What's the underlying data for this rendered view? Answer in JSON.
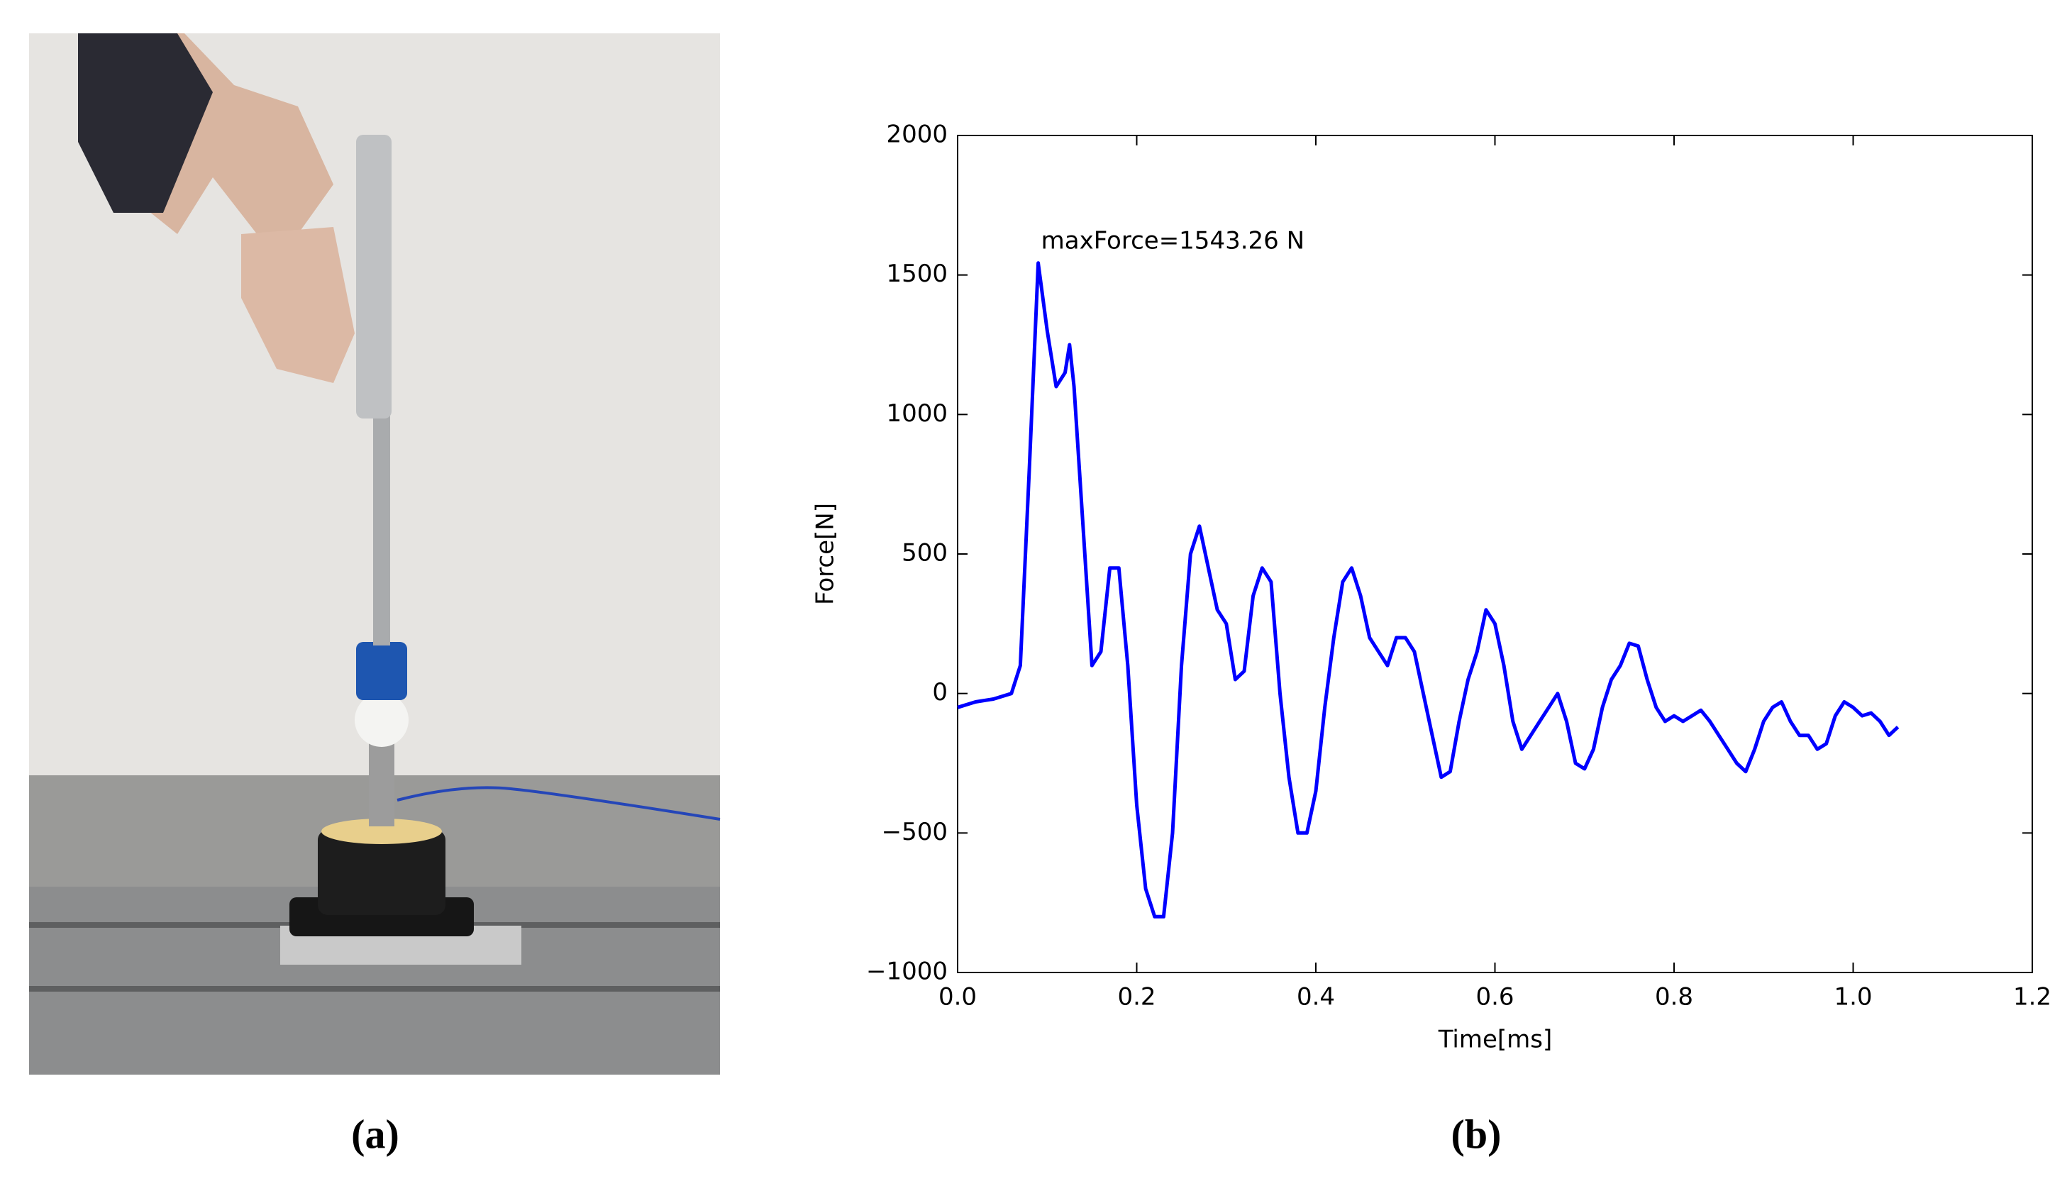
{
  "chart_data": {
    "type": "line",
    "xlabel": "Time[ms]",
    "ylabel": "Force[N]",
    "annotation": "maxForce=1543.26 N",
    "color": "#0000ff",
    "x": [
      0.0,
      0.02,
      0.04,
      0.06,
      0.07,
      0.08,
      0.09,
      0.1,
      0.11,
      0.12,
      0.125,
      0.13,
      0.14,
      0.15,
      0.16,
      0.17,
      0.18,
      0.19,
      0.2,
      0.21,
      0.22,
      0.23,
      0.24,
      0.25,
      0.26,
      0.27,
      0.28,
      0.29,
      0.3,
      0.31,
      0.32,
      0.33,
      0.34,
      0.35,
      0.36,
      0.37,
      0.38,
      0.39,
      0.4,
      0.41,
      0.42,
      0.43,
      0.44,
      0.45,
      0.46,
      0.47,
      0.48,
      0.49,
      0.5,
      0.51,
      0.52,
      0.53,
      0.54,
      0.55,
      0.56,
      0.57,
      0.58,
      0.59,
      0.6,
      0.61,
      0.62,
      0.63,
      0.64,
      0.65,
      0.66,
      0.67,
      0.68,
      0.69,
      0.7,
      0.71,
      0.72,
      0.73,
      0.74,
      0.75,
      0.76,
      0.77,
      0.78,
      0.79,
      0.8,
      0.81,
      0.82,
      0.83,
      0.84,
      0.85,
      0.86,
      0.87,
      0.88,
      0.89,
      0.9,
      0.91,
      0.92,
      0.93,
      0.94,
      0.95,
      0.96,
      0.97,
      0.98,
      0.99,
      1.0,
      1.01,
      1.02,
      1.03,
      1.04,
      1.05
    ],
    "values": [
      -50,
      -30,
      -20,
      0,
      100,
      800,
      1543,
      1300,
      1100,
      1150,
      1250,
      1100,
      600,
      100,
      150,
      450,
      450,
      100,
      -400,
      -700,
      -800,
      -800,
      -500,
      100,
      500,
      600,
      450,
      300,
      250,
      50,
      80,
      350,
      450,
      400,
      0,
      -300,
      -500,
      -500,
      -350,
      -50,
      200,
      400,
      450,
      350,
      200,
      150,
      100,
      200,
      200,
      150,
      0,
      -150,
      -300,
      -280,
      -100,
      50,
      150,
      300,
      250,
      100,
      -100,
      -200,
      -150,
      -100,
      -50,
      0,
      -100,
      -250,
      -270,
      -200,
      -50,
      50,
      100,
      180,
      170,
      50,
      -50,
      -100,
      -80,
      -100,
      -80,
      -60,
      -100,
      -150,
      -200,
      -250,
      -280,
      -200,
      -100,
      -50,
      -30,
      -100,
      -150,
      -150,
      -200,
      -180,
      -80,
      -30,
      -50,
      -80,
      -70,
      -100,
      -150,
      -120
    ],
    "xlim": [
      0,
      1.2
    ],
    "xticks": [
      {
        "value": 0,
        "label": "0.0"
      },
      0.2,
      0.4,
      0.6,
      0.8,
      {
        "value": 1,
        "label": "1.0"
      },
      1.2
    ],
    "ylim": [
      -1000,
      2000
    ],
    "yticks": [
      {
        "value": -1000,
        "label": "−1000"
      },
      {
        "value": -500,
        "label": "−500"
      },
      0,
      500,
      1000,
      1500,
      2000
    ],
    "grid": false
  },
  "captions": [
    "(a)",
    "(b)"
  ]
}
